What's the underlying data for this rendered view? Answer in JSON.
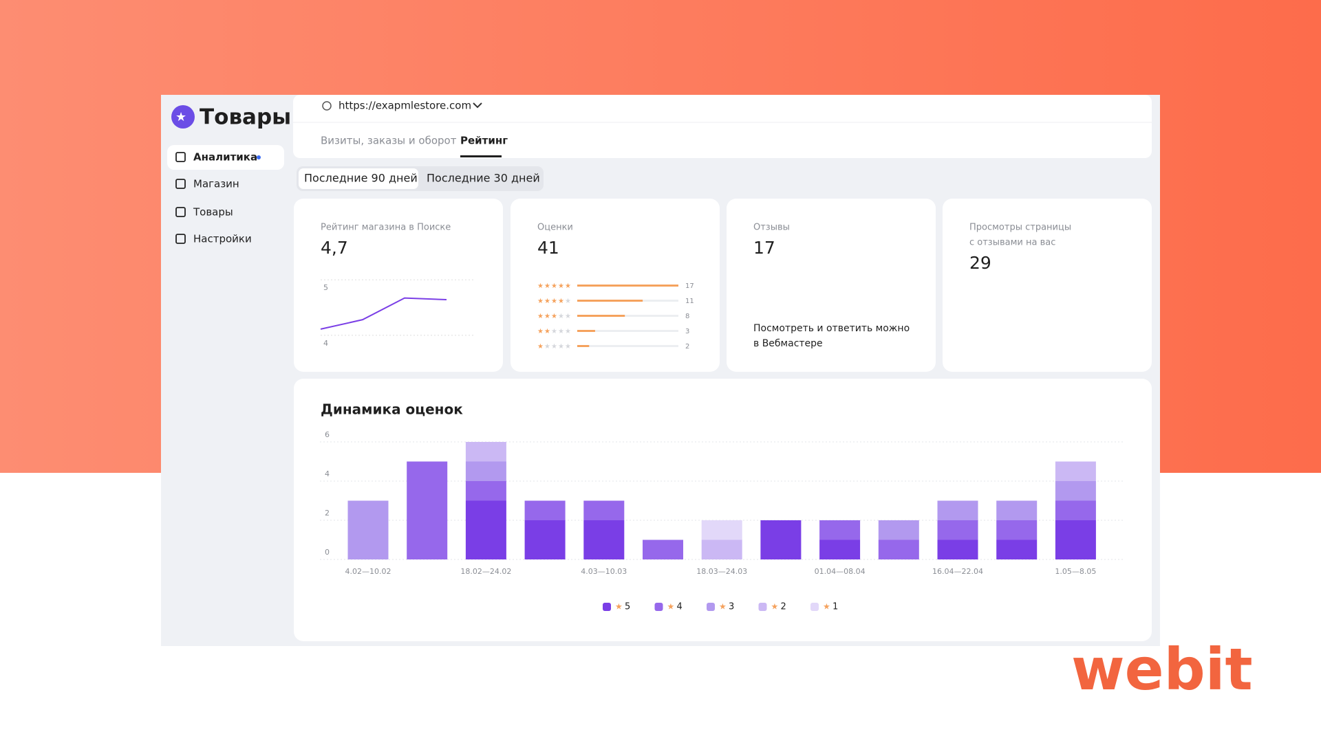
{
  "sidebar": {
    "title": "Товары",
    "nav": [
      "Аналитика",
      "Магазин",
      "Товары",
      "Настройки"
    ]
  },
  "header": {
    "url": "https://exapmlestore.com",
    "tabs": [
      "Визиты, заказы и оборот",
      "Рейтинг"
    ]
  },
  "periods": [
    "Последние 90 дней",
    "Последние 30 дней"
  ],
  "cards": [
    {
      "title": [
        "Рейтинг магазина в Поиске"
      ],
      "value": "4,7"
    },
    {
      "title": [
        "Оценки"
      ],
      "value": "41"
    },
    {
      "title": [
        "Отзывы"
      ],
      "value": "17",
      "note": [
        "Посмотреть и ответить можно",
        "в Вебмастере"
      ]
    },
    {
      "title": [
        "Просмотры страницы",
        "с отзывами на вас"
      ],
      "value": "29"
    }
  ],
  "rating_line": {
    "type": "line",
    "values": [
      4.26,
      4.43,
      4.82,
      4.79
    ],
    "color": "#7a3ee6",
    "ylim": [
      3.9,
      5.1
    ],
    "yticks": [
      5,
      4
    ],
    "grid": true
  },
  "rating_distribution": {
    "type": "bar",
    "orientation": "horizontal",
    "categories": [
      5,
      4,
      3,
      2,
      1
    ],
    "values": [
      17,
      11,
      8,
      3,
      2
    ],
    "color": "#f5a25d",
    "xlim": [
      0,
      17
    ]
  },
  "chart_data": {
    "type": "bar",
    "stacked": true,
    "title": "Динамика оценок",
    "categories": [
      "4.02—10.02",
      null,
      "18.02—24.02",
      null,
      "4.03—10.03",
      null,
      "18.03—24.03",
      null,
      "01.04—08.04",
      null,
      "16.04—22.04",
      null,
      "1.05—8.05"
    ],
    "series": [
      {
        "name": "5",
        "color": "#7a3ee6",
        "values": [
          0,
          0,
          3,
          2,
          2,
          0,
          0,
          2,
          1,
          0,
          1,
          1,
          2
        ]
      },
      {
        "name": "4",
        "color": "#9668eb",
        "values": [
          0,
          5,
          1,
          1,
          1,
          1,
          0,
          0,
          1,
          1,
          1,
          1,
          1
        ]
      },
      {
        "name": "3",
        "color": "#b299ef",
        "values": [
          3,
          0,
          1,
          0,
          0,
          0,
          0,
          0,
          0,
          1,
          1,
          1,
          1
        ]
      },
      {
        "name": "2",
        "color": "#cbb8f4",
        "values": [
          0,
          0,
          1,
          0,
          0,
          0,
          1,
          0,
          0,
          0,
          0,
          0,
          1
        ]
      },
      {
        "name": "1",
        "color": "#e2d8f9",
        "values": [
          0,
          0,
          0,
          0,
          0,
          0,
          1,
          0,
          0,
          0,
          0,
          0,
          0
        ]
      }
    ],
    "ylim": [
      0,
      6
    ],
    "yticks": [
      0,
      2,
      4,
      6
    ],
    "grid": true,
    "legend": "bottom"
  },
  "logo": "webit"
}
